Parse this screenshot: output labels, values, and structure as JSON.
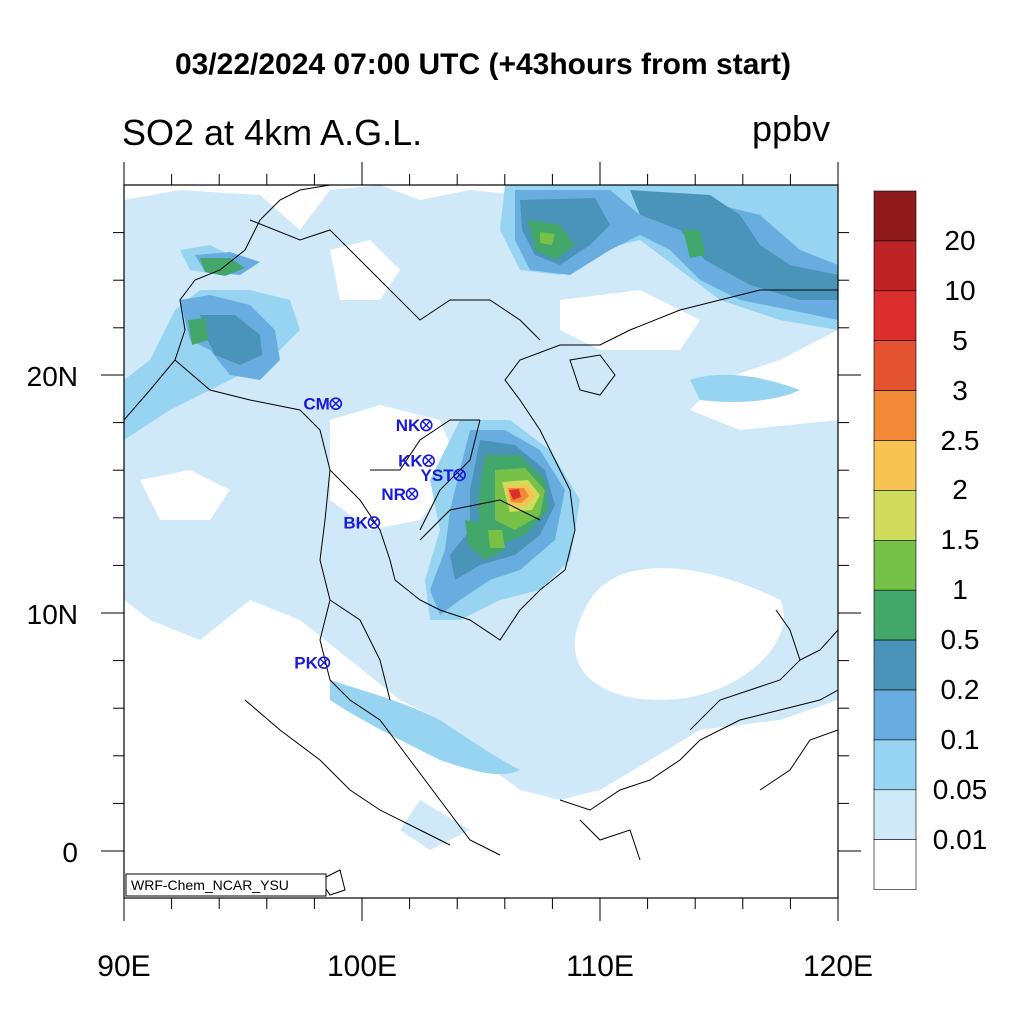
{
  "title": "03/22/2024 07:00 UTC (+43hours from start)",
  "left_subtitle": "SO2 at 4km A.G.L.",
  "right_subtitle": "ppbv",
  "credit": "WRF-Chem_NCAR_YSU",
  "axes": {
    "x_ticks": [
      "90E",
      "100E",
      "110E",
      "120E"
    ],
    "x_range": [
      90,
      120
    ],
    "y_ticks": [
      "20N",
      "10N",
      "0"
    ],
    "y_range": [
      -2,
      28
    ]
  },
  "colorbar": {
    "labels": [
      "20",
      "10",
      "5",
      "3",
      "2.5",
      "2",
      "1.5",
      "1",
      "0.5",
      "0.2",
      "0.1",
      "0.05",
      "0.01"
    ],
    "colors": [
      "#8e1a1b",
      "#be2325",
      "#dc2f2d",
      "#e4532f",
      "#f08a37",
      "#f7c353",
      "#cfdc5c",
      "#77c148",
      "#43a66a",
      "#4a94b9",
      "#69ade0",
      "#97d4f2",
      "#cfe9f9",
      "#ffffff"
    ]
  },
  "stations": [
    {
      "label": "CM",
      "lon": 98.9,
      "lat": 18.8
    },
    {
      "label": "NK",
      "lon": 102.7,
      "lat": 17.9
    },
    {
      "label": "KK",
      "lon": 102.8,
      "lat": 16.4
    },
    {
      "label": "YST",
      "lon": 104.1,
      "lat": 15.8
    },
    {
      "label": "NR",
      "lon": 102.1,
      "lat": 15.0
    },
    {
      "label": "BK",
      "lon": 100.5,
      "lat": 13.8
    },
    {
      "label": "PK",
      "lon": 98.4,
      "lat": 7.9
    }
  ]
}
